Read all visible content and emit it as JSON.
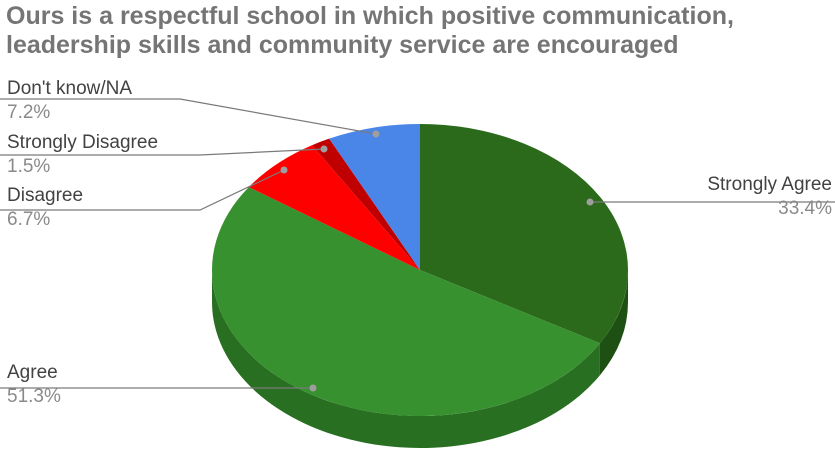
{
  "chart_data": {
    "type": "pie",
    "title_lines": [
      "Ours is a respectful school in which positive communication,",
      "leadership skills and community service are encouraged"
    ],
    "three_d": true,
    "slices": [
      {
        "label": "Strongly Agree",
        "pct_label": "33.4%",
        "value": 33.4,
        "color": "#2a6a1a",
        "side_color": "#1f5013"
      },
      {
        "label": "Agree",
        "pct_label": "51.3%",
        "value": 51.3,
        "color": "#37912f",
        "side_color": "#286f22"
      },
      {
        "label": "Disagree",
        "pct_label": "6.7%",
        "value": 6.7,
        "color": "#ff0000",
        "side_color": "#c40000"
      },
      {
        "label": "Strongly Disagree",
        "pct_label": "1.5%",
        "value": 1.5,
        "color": "#c00000",
        "side_color": "#8f0000"
      },
      {
        "label": "Don't know/NA",
        "pct_label": "7.2%",
        "value": 7.2,
        "color": "#4a86e8",
        "side_color": "#3568bc"
      }
    ]
  }
}
